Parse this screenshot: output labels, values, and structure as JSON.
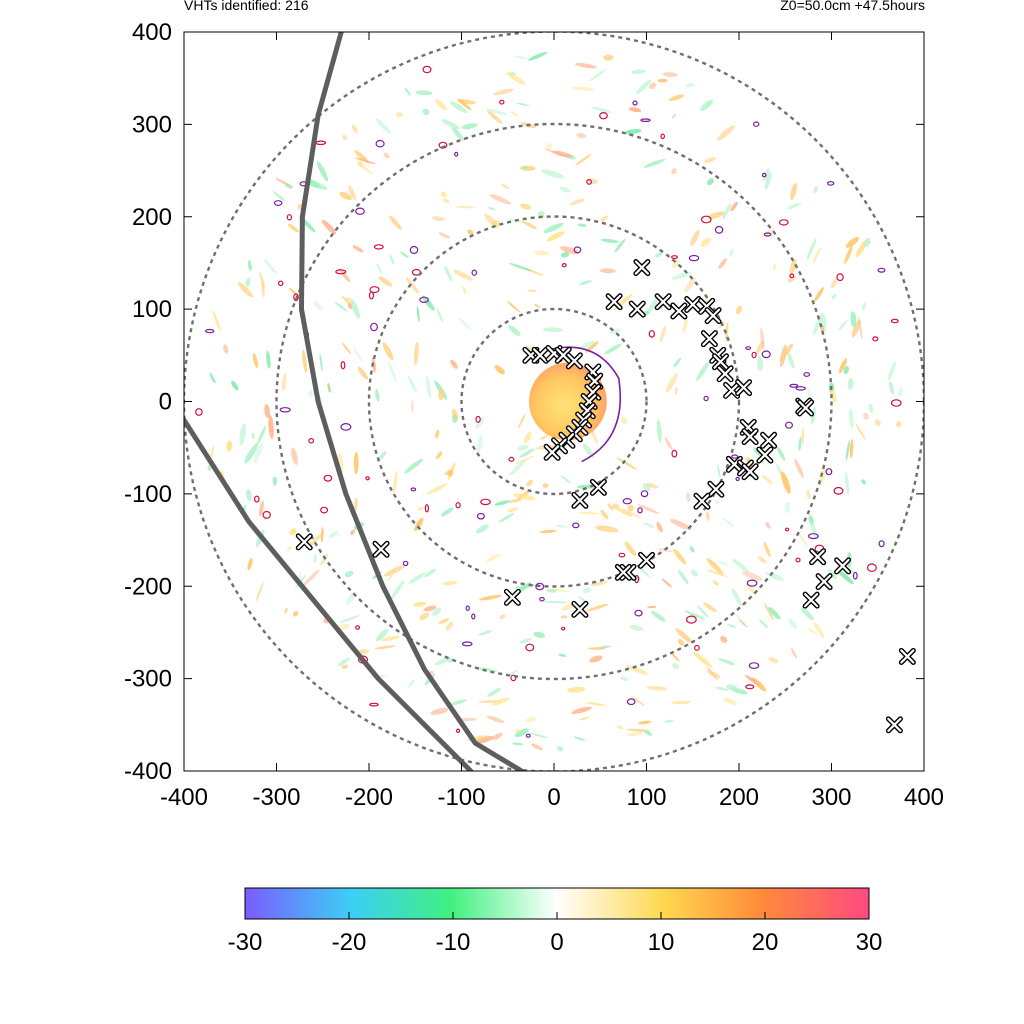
{
  "header": {
    "left_text": "VHTs identified: 216",
    "right_text": "Z0=50.0cm  +47.5hours"
  },
  "chart_data": {
    "type": "scatter",
    "title": "",
    "xlabel": "",
    "ylabel": "",
    "xlim": [
      -400,
      400
    ],
    "ylim": [
      -400,
      400
    ],
    "x_ticks": [
      -400,
      -300,
      -200,
      -100,
      0,
      100,
      200,
      300,
      400
    ],
    "y_ticks": [
      400,
      300,
      200,
      100,
      0,
      -100,
      -200,
      -300,
      -400
    ],
    "x_tick_labels": [
      "-400",
      "-300",
      "-200",
      "-100",
      "0",
      "100",
      "200",
      "300",
      "400"
    ],
    "y_tick_labels": [
      "400",
      "300",
      "200",
      "100",
      "0",
      "-100",
      "-200",
      "-300",
      "-400"
    ],
    "range_rings_radius": [
      100,
      200,
      300,
      400
    ],
    "colorbar": {
      "min": -30,
      "max": 30,
      "ticks": [
        -30,
        -20,
        -10,
        0,
        10,
        20,
        30
      ],
      "tick_labels": [
        "-30",
        "-20",
        "-10",
        "0",
        "10",
        "20",
        "30"
      ],
      "colors": [
        "#7a5cff",
        "#3ccff5",
        "#40f080",
        "#ffffff",
        "#ffd850",
        "#ff8a3a",
        "#ff4a80"
      ]
    },
    "series": [
      {
        "marker": "x",
        "points": [
          [
            95,
            145
          ],
          [
            65,
            108
          ],
          [
            90,
            100
          ],
          [
            118,
            108
          ],
          [
            135,
            98
          ],
          [
            150,
            105
          ],
          [
            165,
            103
          ],
          [
            172,
            93
          ],
          [
            168,
            68
          ],
          [
            177,
            50
          ],
          [
            180,
            43
          ],
          [
            185,
            30
          ],
          [
            192,
            12
          ],
          [
            205,
            15
          ],
          [
            270,
            -5
          ],
          [
            272,
            -7
          ],
          [
            210,
            -28
          ],
          [
            212,
            -38
          ],
          [
            232,
            -42
          ],
          [
            228,
            -58
          ],
          [
            195,
            -68
          ],
          [
            207,
            -72
          ],
          [
            212,
            -76
          ],
          [
            175,
            -95
          ],
          [
            160,
            -108
          ],
          [
            48,
            -93
          ],
          [
            28,
            -107
          ],
          [
            100,
            -172
          ],
          [
            80,
            -185
          ],
          [
            75,
            -185
          ],
          [
            28,
            -225
          ],
          [
            -45,
            -212
          ],
          [
            -270,
            -152
          ],
          [
            -187,
            -160
          ],
          [
            285,
            -168
          ],
          [
            292,
            -195
          ],
          [
            312,
            -178
          ],
          [
            278,
            -215
          ],
          [
            382,
            -276
          ],
          [
            368,
            -350
          ],
          [
            -25,
            50
          ],
          [
            -15,
            50
          ],
          [
            0,
            52
          ],
          [
            10,
            50
          ],
          [
            22,
            44
          ],
          [
            42,
            32
          ],
          [
            44,
            22
          ],
          [
            42,
            10
          ],
          [
            38,
            0
          ],
          [
            36,
            -10
          ],
          [
            32,
            -20
          ],
          [
            28,
            -28
          ],
          [
            22,
            -35
          ],
          [
            14,
            -42
          ],
          [
            6,
            -48
          ],
          [
            -2,
            -55
          ]
        ]
      }
    ],
    "tracks": [
      {
        "points": [
          [
            -230,
            400
          ],
          [
            -255,
            310
          ],
          [
            -272,
            200
          ],
          [
            -273,
            100
          ],
          [
            -255,
            0
          ],
          [
            -225,
            -100
          ],
          [
            -185,
            -200
          ],
          [
            -140,
            -290
          ],
          [
            -85,
            -370
          ],
          [
            -35,
            -400
          ]
        ]
      },
      {
        "points": [
          [
            -400,
            -20
          ],
          [
            -330,
            -130
          ],
          [
            -260,
            -215
          ],
          [
            -190,
            -300
          ],
          [
            -130,
            -360
          ],
          [
            -90,
            -400
          ]
        ]
      }
    ],
    "core": {
      "center": [
        15,
        0
      ],
      "radius": 42
    }
  }
}
